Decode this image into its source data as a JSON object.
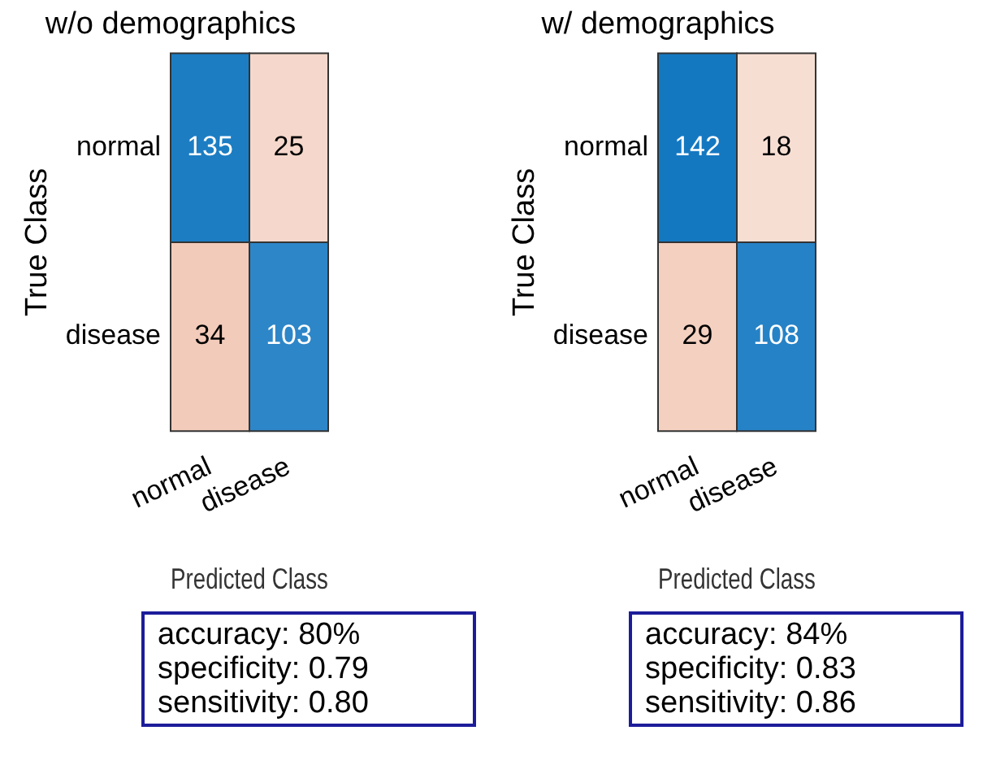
{
  "chart_data": [
    {
      "type": "heatmap",
      "title": "w/o demographics",
      "xlabel": "Predicted Class",
      "ylabel": "True Class",
      "categories": [
        "normal",
        "disease"
      ],
      "y_categories": [
        "normal",
        "disease"
      ],
      "cells": [
        [
          135,
          25
        ],
        [
          34,
          103
        ]
      ],
      "data_labels": true,
      "annotations": [
        "accuracy: 80%",
        "specificity: 0.79",
        "sensitivity: 0.80"
      ]
    },
    {
      "type": "heatmap",
      "title": "w/ demographics",
      "xlabel": "Predicted Class",
      "ylabel": "True Class",
      "categories": [
        "normal",
        "disease"
      ],
      "y_categories": [
        "normal",
        "disease"
      ],
      "cells": [
        [
          142,
          18
        ],
        [
          29,
          108
        ]
      ],
      "data_labels": true,
      "annotations": [
        "accuracy: 84%",
        "specificity: 0.83",
        "sensitivity: 0.86"
      ]
    }
  ]
}
